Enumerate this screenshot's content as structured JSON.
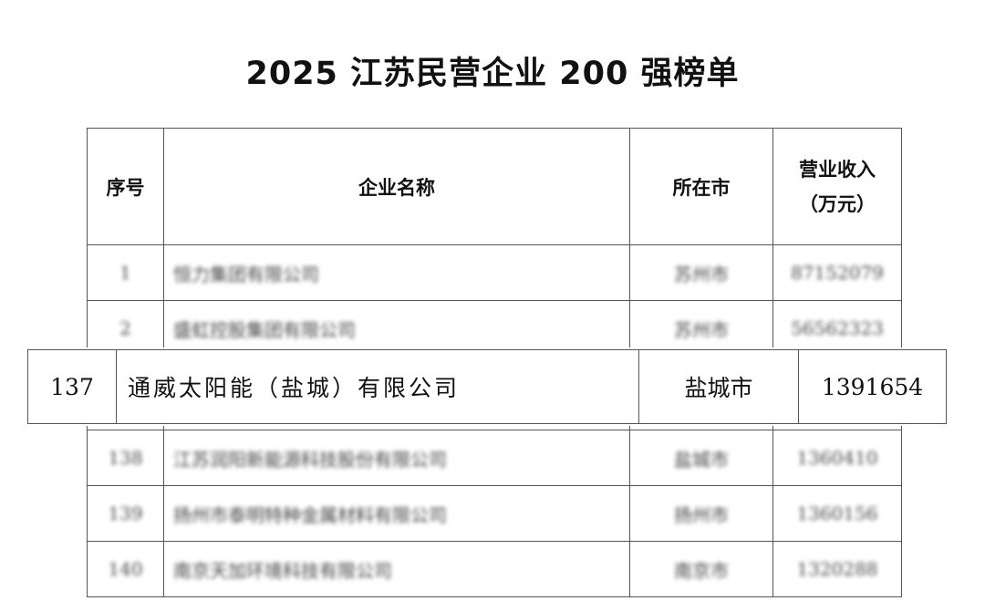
{
  "title": "2025 江苏民营企业 200 强榜单",
  "headers": {
    "rank": "序号",
    "name": "企业名称",
    "city": "所在市",
    "revenue_line1": "营业收入",
    "revenue_line2": "（万元）"
  },
  "rows_top": [
    {
      "rank": "1",
      "name": "恒力集团有限公司",
      "city": "苏州市",
      "revenue": "87152079"
    },
    {
      "rank": "2",
      "name": "盛虹控股集团有限公司",
      "city": "苏州市",
      "revenue": "56562323"
    }
  ],
  "highlight": {
    "rank": "137",
    "name": "通威太阳能（盐城）有限公司",
    "city": "盐城市",
    "revenue": "1391654"
  },
  "rows_bottom": [
    {
      "rank": "138",
      "name": "江苏润阳新能源科技股份有限公司",
      "city": "盐城市",
      "revenue": "1360410"
    },
    {
      "rank": "139",
      "name": "扬州市泰明特种金属材料有限公司",
      "city": "扬州市",
      "revenue": "1360156"
    },
    {
      "rank": "140",
      "name": "南京天加环境科技有限公司",
      "city": "南京市",
      "revenue": "1320288"
    }
  ]
}
